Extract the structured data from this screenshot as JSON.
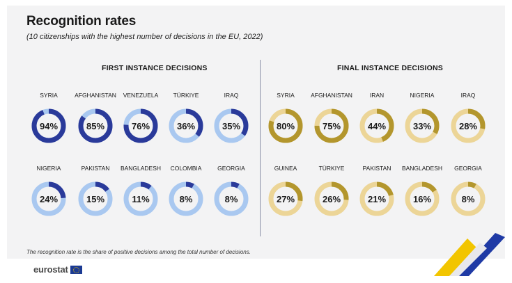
{
  "header": {
    "title": "Recognition rates",
    "subtitle": "(10 citizenships with the highest number of decisions in the EU, 2022)"
  },
  "footnote": "The recognition rate is the share of positive decisions among the total number of decisions.",
  "logo": {
    "text": "eurostat",
    "icon": "eu-flag-icon"
  },
  "chart_data": [
    {
      "type": "pie",
      "subtype": "donut",
      "title": "FIRST INSTANCE DECISIONS",
      "unit": "%",
      "colors": {
        "value": "#2a3a9a",
        "remainder": "#a9c8f0"
      },
      "categories": [
        "SYRIA",
        "AFGHANISTAN",
        "VENEZUELA",
        "TÜRKIYE",
        "IRAQ",
        "NIGERIA",
        "PAKISTAN",
        "BANGLADESH",
        "COLOMBIA",
        "GEORGIA"
      ],
      "values": [
        94,
        85,
        76,
        36,
        35,
        24,
        15,
        11,
        8,
        8
      ]
    },
    {
      "type": "pie",
      "subtype": "donut",
      "title": "FINAL INSTANCE DECISIONS",
      "unit": "%",
      "colors": {
        "value": "#b3962d",
        "remainder": "#ecd597"
      },
      "categories": [
        "SYRIA",
        "AFGHANISTAN",
        "IRAN",
        "NIGERIA",
        "IRAQ",
        "GUINEA",
        "TÜRKIYE",
        "PAKISTAN",
        "BANGLADESH",
        "GEORGIA"
      ],
      "values": [
        80,
        75,
        44,
        33,
        28,
        27,
        26,
        21,
        16,
        8
      ]
    }
  ]
}
